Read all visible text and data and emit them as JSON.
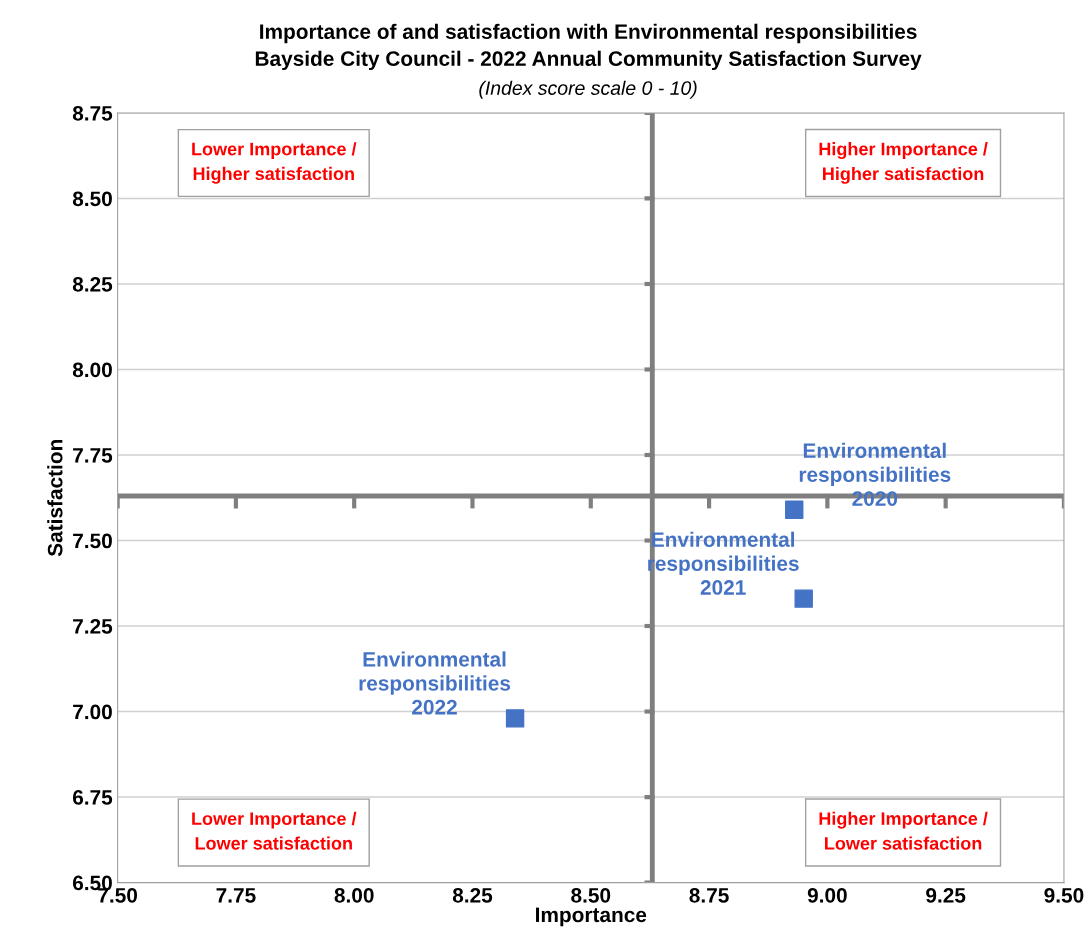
{
  "chart_data": {
    "type": "scatter",
    "title": "Importance of and satisfaction with Environmental responsibilities\nBayside City Council - 2022 Annual Community Satisfaction Survey",
    "subtitle": "(Index score scale 0 - 10)",
    "xlabel": "Importance",
    "ylabel": "Satisfaction",
    "series": [
      {
        "color": "#4472c4",
        "x": [
          8.93,
          8.95,
          8.34
        ],
        "values": [
          7.59,
          7.33,
          6.98
        ]
      }
    ],
    "marker": "square",
    "xlim": [
      7.5,
      9.5
    ],
    "xticks": [
      {
        "value": 7.5,
        "label": "7.50"
      },
      {
        "value": 7.75,
        "label": "7.75"
      },
      {
        "value": 8.0,
        "label": "8.00"
      },
      {
        "value": 8.25,
        "label": "8.25"
      },
      {
        "value": 8.5,
        "label": "8.50"
      },
      {
        "value": 8.75,
        "label": "8.75"
      },
      {
        "value": 9.0,
        "label": "9.00"
      },
      {
        "value": 9.25,
        "label": "9.25"
      },
      {
        "value": 9.5,
        "label": "9.50"
      }
    ],
    "ylim": [
      6.5,
      8.75
    ],
    "yticks": [
      {
        "value": 6.5,
        "label": "6.50"
      },
      {
        "value": 6.75,
        "label": "6.75"
      },
      {
        "value": 7.0,
        "label": "7.00"
      },
      {
        "value": 7.25,
        "label": "7.25"
      },
      {
        "value": 7.5,
        "label": "7.50"
      },
      {
        "value": 7.75,
        "label": "7.75"
      },
      {
        "value": 8.0,
        "label": "8.00"
      },
      {
        "value": 8.25,
        "label": "8.25"
      },
      {
        "value": 8.5,
        "label": "8.50"
      },
      {
        "value": 8.75,
        "label": "8.75"
      }
    ],
    "grid": "y",
    "ref_lines": [
      {
        "axis": "x",
        "value": 8.63,
        "color": "#7f7f7f"
      },
      {
        "axis": "y",
        "value": 7.63,
        "color": "#7f7f7f"
      }
    ],
    "annotations": [
      "Lower Importance /\nHigher satisfaction",
      "Higher Importance /\nHigher satisfaction",
      "Lower Importance /\nLower satisfaction",
      "Higher Importance /\nLower satisfaction",
      {
        "text": "Environmental\nresponsibilities\n2020",
        "x": 8.93,
        "y": 7.59
      },
      {
        "text": "Environmental\nresponsibilities\n2021",
        "x": 8.95,
        "y": 7.33
      },
      {
        "text": "Environmental\nresponsibilities\n2022",
        "x": 8.34,
        "y": 6.98
      }
    ]
  }
}
